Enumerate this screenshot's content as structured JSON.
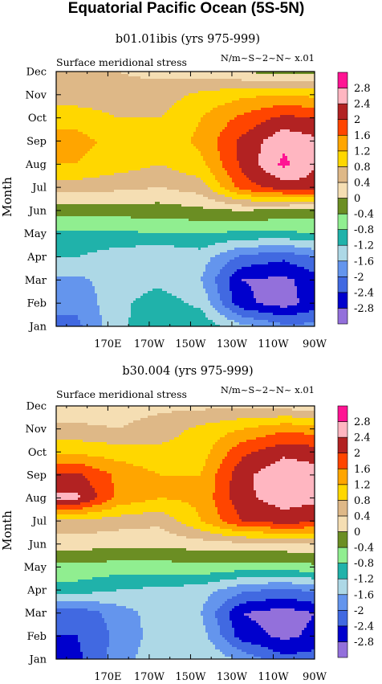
{
  "figure_title": "Equatorial Pacific Ocean (5S-5N)",
  "colors": {
    "levels": [
      -2.8,
      -2.4,
      -2.0,
      -1.6,
      -1.2,
      -0.8,
      -0.4,
      0,
      0.4,
      0.8,
      1.2,
      1.6,
      2.0,
      2.4,
      2.8
    ],
    "fills": [
      "#9370db",
      "#0000cd",
      "#4169e1",
      "#6495ed",
      "#add8e6",
      "#20b2aa",
      "#90ee90",
      "#6b8e23",
      "#f5deb3",
      "#deb887",
      "#ffd700",
      "#ffa500",
      "#ff4500",
      "#b22222",
      "#ffb6c1",
      "#ff1493"
    ]
  },
  "chart_data": [
    {
      "type": "heatmap",
      "title": "b01.01ibis (yrs 975-999)",
      "left_string": "Surface meridional stress",
      "right_string": "N/m~S~2~N~ x.01",
      "ylabel": "Month",
      "x_ticks": [
        "170E",
        "170W",
        "150W",
        "130W",
        "110W",
        "90W"
      ],
      "y_ticks": [
        "Jan",
        "Feb",
        "Mar",
        "Apr",
        "May",
        "Jun",
        "Jul",
        "Aug",
        "Sep",
        "Oct",
        "Nov",
        "Dec"
      ],
      "legend_labels": [
        "-2.8",
        "-2.4",
        "-2",
        "-1.6",
        "-1.2",
        "-0.8",
        "-0.4",
        "0",
        "0.4",
        "0.8",
        "1.2",
        "1.6",
        "2",
        "2.4",
        "2.8"
      ],
      "lon": [
        155,
        175,
        195,
        215,
        235,
        255,
        270
      ],
      "months": [
        1,
        2,
        3,
        4,
        5,
        6,
        7,
        8,
        9,
        10,
        11,
        12
      ],
      "values": [
        [
          -2.1,
          -1.3,
          -0.9,
          -0.9,
          -1.5,
          -1.9,
          -1.9
        ],
        [
          -1.9,
          -1.3,
          -1.0,
          -1.3,
          -2.7,
          -3.0,
          -2.6
        ],
        [
          -1.7,
          -1.4,
          -1.3,
          -1.6,
          -2.8,
          -2.9,
          -2.6
        ],
        [
          -1.2,
          -1.4,
          -1.6,
          -1.4,
          -2.1,
          -2.3,
          -2.0
        ],
        [
          -0.9,
          -0.9,
          -0.8,
          -0.8,
          -0.9,
          -0.9,
          -0.8
        ],
        [
          -0.2,
          -0.2,
          -0.2,
          -0.1,
          0.0,
          -0.1,
          -0.2
        ],
        [
          0.6,
          0.5,
          0.4,
          0.6,
          1.8,
          2.2,
          2.3
        ],
        [
          1.2,
          1.0,
          0.8,
          1.1,
          2.1,
          2.9,
          2.4
        ],
        [
          1.3,
          1.1,
          0.9,
          1.3,
          2.1,
          2.7,
          2.5
        ],
        [
          1.1,
          0.8,
          0.8,
          1.2,
          1.7,
          2.1,
          2.0
        ],
        [
          0.5,
          0.5,
          0.6,
          0.9,
          1.1,
          1.2,
          1.1
        ],
        [
          0.5,
          0.4,
          0.3,
          0.2,
          0.0,
          -0.2,
          -0.2
        ]
      ]
    },
    {
      "type": "heatmap",
      "title": "b30.004 (yrs 975-999)",
      "left_string": "Surface meridional stress",
      "right_string": "N/m~S~2~N~ x.01",
      "ylabel": "Month",
      "x_ticks": [
        "170E",
        "170W",
        "150W",
        "130W",
        "110W",
        "90W"
      ],
      "y_ticks": [
        "Jan",
        "Feb",
        "Mar",
        "Apr",
        "May",
        "Jun",
        "Jul",
        "Aug",
        "Sep",
        "Oct",
        "Nov",
        "Dec"
      ],
      "legend_labels": [
        "-2.8",
        "-2.4",
        "-2",
        "-1.6",
        "-1.2",
        "-0.8",
        "-0.4",
        "0",
        "0.4",
        "0.8",
        "1.2",
        "1.6",
        "2",
        "2.4",
        "2.8"
      ],
      "lon": [
        155,
        175,
        195,
        215,
        235,
        255,
        270
      ],
      "months": [
        1,
        2,
        3,
        4,
        5,
        6,
        7,
        8,
        9,
        10,
        11,
        12
      ],
      "values": [
        [
          -2.5,
          -1.8,
          -1.3,
          -1.2,
          -1.7,
          -2.3,
          -2.2
        ],
        [
          -2.4,
          -1.9,
          -1.4,
          -1.4,
          -2.6,
          -2.9,
          -2.7
        ],
        [
          -2.3,
          -1.8,
          -1.4,
          -1.6,
          -2.8,
          -3.0,
          -2.8
        ],
        [
          -1.0,
          -1.2,
          -1.3,
          -1.4,
          -1.9,
          -2.1,
          -1.9
        ],
        [
          -0.5,
          -0.6,
          -0.6,
          -0.5,
          -0.6,
          -0.6,
          -0.5
        ],
        [
          0.2,
          0.1,
          0.1,
          0.2,
          0.3,
          0.3,
          0.3
        ],
        [
          0.7,
          0.6,
          0.5,
          1.2,
          2.0,
          2.2,
          2.1
        ],
        [
          2.5,
          1.5,
          1.2,
          1.3,
          2.3,
          2.6,
          2.5
        ],
        [
          2.1,
          1.5,
          1.2,
          1.2,
          2.3,
          2.7,
          2.6
        ],
        [
          1.1,
          1.0,
          0.9,
          1.0,
          1.9,
          2.3,
          2.2
        ],
        [
          0.5,
          0.4,
          0.6,
          0.9,
          1.2,
          1.5,
          1.4
        ],
        [
          0.1,
          0.2,
          0.3,
          0.3,
          0.3,
          0.2,
          0.2
        ]
      ]
    }
  ]
}
